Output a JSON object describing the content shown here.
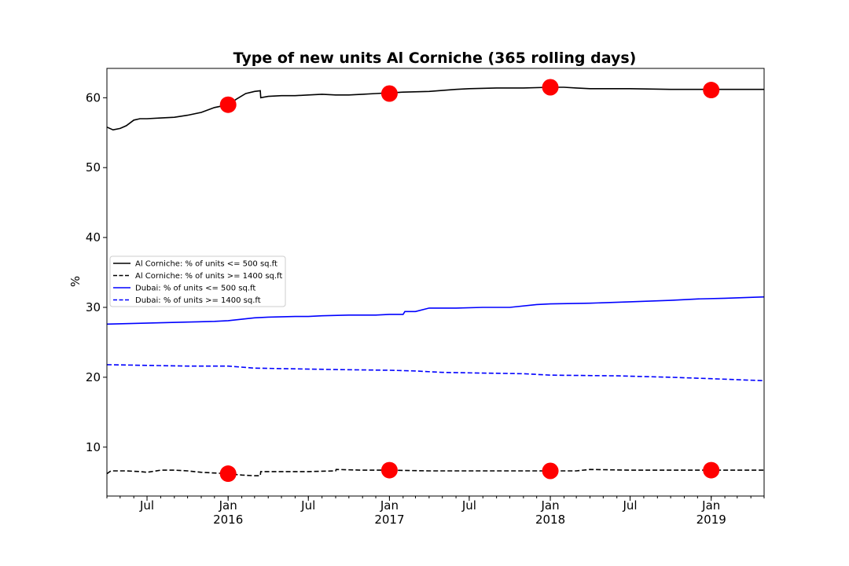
{
  "chart_data": {
    "type": "line",
    "title": "Type of new units Al Corniche (365 rolling days)",
    "xlabel": "",
    "ylabel": "%",
    "x_range": [
      "2015-04-01",
      "2019-05-01"
    ],
    "ylim": [
      3.0,
      64.2
    ],
    "y_ticks": [
      10,
      20,
      30,
      40,
      50,
      60
    ],
    "x_ticks": [
      {
        "date": "2015-07-01",
        "label": "Jul",
        "sublabel": ""
      },
      {
        "date": "2016-01-01",
        "label": "Jan",
        "sublabel": "2016"
      },
      {
        "date": "2016-07-01",
        "label": "Jul",
        "sublabel": ""
      },
      {
        "date": "2017-01-01",
        "label": "Jan",
        "sublabel": "2017"
      },
      {
        "date": "2017-07-01",
        "label": "Jul",
        "sublabel": ""
      },
      {
        "date": "2018-01-01",
        "label": "Jan",
        "sublabel": "2018"
      },
      {
        "date": "2018-07-01",
        "label": "Jul",
        "sublabel": ""
      },
      {
        "date": "2019-01-01",
        "label": "Jan",
        "sublabel": "2019"
      }
    ],
    "grid": false,
    "legend_position": "center-left",
    "series": [
      {
        "name": "Al Corniche: % of units <= 500 sq.ft",
        "color": "#000000",
        "dash": "solid",
        "points": [
          [
            "2015-04-01",
            55.8
          ],
          [
            "2015-04-15",
            55.4
          ],
          [
            "2015-05-01",
            55.6
          ],
          [
            "2015-05-15",
            56.0
          ],
          [
            "2015-06-01",
            56.8
          ],
          [
            "2015-06-15",
            57.0
          ],
          [
            "2015-07-01",
            57.0
          ],
          [
            "2015-08-01",
            57.1
          ],
          [
            "2015-09-01",
            57.2
          ],
          [
            "2015-10-01",
            57.5
          ],
          [
            "2015-11-01",
            57.9
          ],
          [
            "2015-12-01",
            58.6
          ],
          [
            "2016-01-01",
            59.0
          ],
          [
            "2016-01-20",
            59.8
          ],
          [
            "2016-02-10",
            60.6
          ],
          [
            "2016-03-01",
            60.9
          ],
          [
            "2016-03-14",
            61.0
          ],
          [
            "2016-03-15",
            60.0
          ],
          [
            "2016-04-01",
            60.2
          ],
          [
            "2016-05-01",
            60.3
          ],
          [
            "2016-06-01",
            60.3
          ],
          [
            "2016-07-01",
            60.4
          ],
          [
            "2016-08-01",
            60.5
          ],
          [
            "2016-09-01",
            60.4
          ],
          [
            "2016-10-01",
            60.4
          ],
          [
            "2016-11-01",
            60.5
          ],
          [
            "2016-12-01",
            60.6
          ],
          [
            "2017-01-01",
            60.7
          ],
          [
            "2017-02-01",
            60.8
          ],
          [
            "2017-04-01",
            60.9
          ],
          [
            "2017-06-01",
            61.2
          ],
          [
            "2017-07-01",
            61.3
          ],
          [
            "2017-09-01",
            61.4
          ],
          [
            "2017-11-01",
            61.4
          ],
          [
            "2018-01-01",
            61.5
          ],
          [
            "2018-02-01",
            61.5
          ],
          [
            "2018-03-01",
            61.4
          ],
          [
            "2018-04-01",
            61.3
          ],
          [
            "2018-07-01",
            61.3
          ],
          [
            "2018-10-01",
            61.2
          ],
          [
            "2019-01-01",
            61.2
          ],
          [
            "2019-05-01",
            61.2
          ]
        ]
      },
      {
        "name": "Al Corniche: % of units >= 1400 sq.ft",
        "color": "#000000",
        "dash": "dashed",
        "points": [
          [
            "2015-04-01",
            6.2
          ],
          [
            "2015-04-10",
            6.6
          ],
          [
            "2015-05-15",
            6.6
          ],
          [
            "2015-06-15",
            6.5
          ],
          [
            "2015-07-01",
            6.4
          ],
          [
            "2015-08-01",
            6.7
          ],
          [
            "2015-09-01",
            6.7
          ],
          [
            "2015-10-01",
            6.6
          ],
          [
            "2015-11-01",
            6.4
          ],
          [
            "2015-12-01",
            6.3
          ],
          [
            "2016-01-01",
            6.2
          ],
          [
            "2016-02-01",
            6.0
          ],
          [
            "2016-03-01",
            5.9
          ],
          [
            "2016-03-14",
            5.9
          ],
          [
            "2016-03-15",
            6.5
          ],
          [
            "2016-05-01",
            6.5
          ],
          [
            "2016-07-01",
            6.5
          ],
          [
            "2016-09-01",
            6.6
          ],
          [
            "2016-09-02",
            6.8
          ],
          [
            "2016-11-01",
            6.7
          ],
          [
            "2017-01-01",
            6.7
          ],
          [
            "2017-04-01",
            6.6
          ],
          [
            "2017-07-01",
            6.6
          ],
          [
            "2017-10-01",
            6.6
          ],
          [
            "2018-01-01",
            6.6
          ],
          [
            "2018-03-01",
            6.6
          ],
          [
            "2018-04-01",
            6.8
          ],
          [
            "2018-07-01",
            6.7
          ],
          [
            "2019-01-01",
            6.7
          ],
          [
            "2019-05-01",
            6.7
          ]
        ]
      },
      {
        "name": "Dubai: % of units <= 500 sq.ft",
        "color": "#0000ff",
        "dash": "solid",
        "points": [
          [
            "2015-04-01",
            27.6
          ],
          [
            "2015-06-01",
            27.7
          ],
          [
            "2015-08-01",
            27.8
          ],
          [
            "2015-10-01",
            27.9
          ],
          [
            "2015-12-01",
            28.0
          ],
          [
            "2016-01-01",
            28.1
          ],
          [
            "2016-02-01",
            28.3
          ],
          [
            "2016-03-01",
            28.5
          ],
          [
            "2016-04-01",
            28.6
          ],
          [
            "2016-06-01",
            28.7
          ],
          [
            "2016-07-01",
            28.7
          ],
          [
            "2016-08-01",
            28.8
          ],
          [
            "2016-10-01",
            28.9
          ],
          [
            "2016-12-01",
            28.9
          ],
          [
            "2017-01-01",
            29.0
          ],
          [
            "2017-02-01",
            29.0
          ],
          [
            "2017-02-05",
            29.4
          ],
          [
            "2017-03-01",
            29.4
          ],
          [
            "2017-04-01",
            29.9
          ],
          [
            "2017-06-01",
            29.9
          ],
          [
            "2017-08-01",
            30.0
          ],
          [
            "2017-10-01",
            30.0
          ],
          [
            "2017-12-01",
            30.4
          ],
          [
            "2018-01-01",
            30.5
          ],
          [
            "2018-04-01",
            30.6
          ],
          [
            "2018-07-01",
            30.8
          ],
          [
            "2018-10-01",
            31.0
          ],
          [
            "2018-12-01",
            31.2
          ],
          [
            "2019-02-01",
            31.3
          ],
          [
            "2019-05-01",
            31.5
          ]
        ]
      },
      {
        "name": "Dubai: % of units >= 1400 sq.ft",
        "color": "#0000ff",
        "dash": "dashed",
        "points": [
          [
            "2015-04-01",
            21.8
          ],
          [
            "2015-07-01",
            21.7
          ],
          [
            "2015-10-01",
            21.6
          ],
          [
            "2016-01-01",
            21.6
          ],
          [
            "2016-03-01",
            21.3
          ],
          [
            "2016-06-01",
            21.2
          ],
          [
            "2016-09-01",
            21.1
          ],
          [
            "2017-01-01",
            21.0
          ],
          [
            "2017-03-01",
            20.9
          ],
          [
            "2017-05-01",
            20.7
          ],
          [
            "2017-08-01",
            20.6
          ],
          [
            "2017-11-01",
            20.5
          ],
          [
            "2018-01-01",
            20.3
          ],
          [
            "2018-06-01",
            20.2
          ],
          [
            "2018-10-01",
            20.0
          ],
          [
            "2019-01-01",
            19.8
          ],
          [
            "2019-05-01",
            19.5
          ]
        ]
      }
    ],
    "markers": {
      "color": "#ff0000",
      "points": [
        [
          "2016-01-01",
          59.0
        ],
        [
          "2017-01-01",
          60.6
        ],
        [
          "2018-01-01",
          61.5
        ],
        [
          "2019-01-01",
          61.1
        ],
        [
          "2016-01-01",
          6.2
        ],
        [
          "2017-01-01",
          6.7
        ],
        [
          "2018-01-01",
          6.6
        ],
        [
          "2019-01-01",
          6.7
        ]
      ]
    }
  }
}
